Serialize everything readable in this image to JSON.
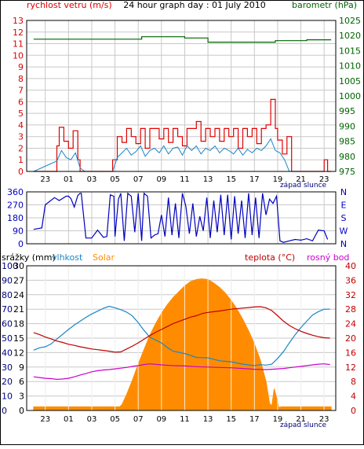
{
  "colors": {
    "wind": "#e00000",
    "gust": "#e00000",
    "baro": "#006400",
    "direction": "#0000c0",
    "rain": "#000080",
    "humidity": "#1a86c8",
    "solar": "#ff8c00",
    "temperature": "#c00000",
    "dewpoint": "#cc00cc",
    "sunset_label": "#000080",
    "frame": "#000000",
    "grid": "#c8c8c8"
  },
  "chart_data": [
    {
      "type": "line",
      "title": "24 hour graph day : 01 July 2010",
      "x_ticks": [
        "23",
        "01",
        "03",
        "05",
        "07",
        "09",
        "11",
        "13",
        "15",
        "17",
        "19",
        "21",
        "23"
      ],
      "annotation": "západ slunce",
      "left_axis": {
        "label": "rychlost vetru (m/s)",
        "range": [
          0,
          13
        ],
        "ticks": [
          "0",
          "1",
          "2",
          "3",
          "4",
          "5",
          "6",
          "7",
          "8",
          "9",
          "10",
          "11",
          "12",
          "13"
        ]
      },
      "right_axis": {
        "label": "barometr (hPa)",
        "range": [
          975,
          1025
        ],
        "ticks": [
          "975",
          "980",
          "985",
          "990",
          "995",
          "1000",
          "1005",
          "1010",
          "1015",
          "1020",
          "1025"
        ]
      },
      "series": [
        {
          "name": "rychlost vetru (m/s)",
          "axis": "left",
          "x": [
            -2.0,
            0.0,
            0.2,
            0.6,
            1.0,
            1.4,
            1.8,
            2.0,
            2.4,
            2.8,
            3.2,
            3.6,
            4.0,
            4.4,
            4.8,
            5.2,
            5.6,
            6.0,
            6.4,
            6.8,
            7.2,
            7.6,
            8.0,
            8.4,
            8.8,
            9.2,
            9.6,
            10.0,
            10.4,
            10.8,
            11.2,
            11.6,
            12.0,
            12.4,
            12.8,
            13.2,
            13.6,
            14.0,
            14.4,
            14.8,
            15.2,
            15.6,
            16.0,
            16.4,
            16.8,
            17.2,
            17.6,
            18.0,
            18.4,
            18.8,
            19.0,
            19.4,
            19.8,
            20.2,
            20.6,
            21.0,
            21.4,
            21.8,
            22.2,
            22.6,
            23.0,
            23.3,
            23.6
          ],
          "y": [
            0.0,
            2.2,
            3.8,
            2.6,
            2.0,
            3.5,
            1.0,
            0.0,
            0.0,
            0.0,
            0.0,
            0.0,
            0.0,
            0.0,
            1.0,
            3.0,
            2.5,
            3.7,
            3.0,
            2.4,
            3.7,
            2.0,
            3.7,
            3.7,
            2.8,
            3.7,
            2.5,
            3.7,
            3.0,
            2.2,
            3.7,
            3.7,
            4.3,
            2.6,
            3.7,
            3.0,
            3.7,
            2.6,
            3.7,
            3.0,
            3.7,
            2.0,
            3.7,
            3.0,
            3.7,
            2.4,
            3.7,
            4.0,
            6.2,
            3.7,
            2.7,
            1.5,
            3.0,
            0.0,
            0.0,
            0.0,
            0.0,
            0.0,
            0.0,
            0.0,
            1.0,
            0.0,
            0.0
          ]
        },
        {
          "name": "gust_lower_trace",
          "axis": "left",
          "x": [
            -2.0,
            0.0,
            0.4,
            0.8,
            1.2,
            1.6,
            2.0,
            2.4,
            2.8,
            3.2,
            3.6,
            4.0,
            4.4,
            4.8,
            5.2,
            5.6,
            6.0,
            6.4,
            6.8,
            7.2,
            7.6,
            8.0,
            8.4,
            8.8,
            9.2,
            9.6,
            10.0,
            10.4,
            10.8,
            11.2,
            11.6,
            12.0,
            12.4,
            12.8,
            13.2,
            13.6,
            14.0,
            14.4,
            14.8,
            15.2,
            15.6,
            16.0,
            16.4,
            16.8,
            17.2,
            17.6,
            18.0,
            18.4,
            18.8,
            19.2,
            19.6,
            20.0,
            20.4,
            21.0,
            22.0,
            23.6
          ],
          "y": [
            0.0,
            0.9,
            1.8,
            1.2,
            1.0,
            1.6,
            0.3,
            0.0,
            0.0,
            0.0,
            0.0,
            0.0,
            0.0,
            0.0,
            1.2,
            1.6,
            2.0,
            1.4,
            1.7,
            2.2,
            1.3,
            1.8,
            2.0,
            1.6,
            2.2,
            1.5,
            2.0,
            2.1,
            1.4,
            2.2,
            1.8,
            2.2,
            1.5,
            2.0,
            1.8,
            2.2,
            1.6,
            2.0,
            1.8,
            1.5,
            2.0,
            1.4,
            1.9,
            1.6,
            2.0,
            1.8,
            2.2,
            2.8,
            1.8,
            1.6,
            1.0,
            0.0,
            0.0,
            0.0,
            0.0,
            0.0
          ]
        },
        {
          "name": "barometr (hPa)",
          "axis": "right",
          "x": [
            -2.0,
            7.3,
            7.3,
            11.0,
            11.0,
            13.0,
            13.0,
            18.8,
            18.8,
            21.5,
            21.5,
            23.6
          ],
          "y": [
            1018.8,
            1018.8,
            1019.6,
            1019.6,
            1019.2,
            1019.2,
            1017.8,
            1017.8,
            1018.3,
            1018.3,
            1018.6,
            1018.6
          ]
        }
      ]
    },
    {
      "type": "line",
      "left_axis": {
        "range": [
          0,
          360
        ],
        "ticks": [
          "0",
          "90",
          "180",
          "270",
          "360"
        ]
      },
      "right_axis_labels": [
        "N",
        "W",
        "S",
        "E",
        "N"
      ],
      "series": [
        {
          "name": "smer vetru",
          "x": [
            -2.0,
            -1.3,
            -1.0,
            -0.2,
            0.2,
            0.8,
            1.0,
            1.2,
            1.5,
            1.8,
            2.0,
            2.1,
            2.5,
            3.0,
            3.5,
            4.0,
            4.3,
            4.6,
            4.9,
            5.0,
            5.3,
            5.5,
            5.8,
            6.1,
            6.4,
            6.7,
            7.0,
            7.3,
            7.5,
            7.8,
            8.1,
            8.4,
            8.7,
            9.0,
            9.3,
            9.6,
            9.9,
            10.2,
            10.5,
            10.8,
            11.1,
            11.4,
            11.7,
            12.0,
            12.3,
            12.6,
            12.9,
            13.2,
            13.5,
            13.8,
            14.1,
            14.4,
            14.7,
            15.0,
            15.3,
            15.6,
            15.9,
            16.2,
            16.5,
            16.8,
            17.1,
            17.4,
            17.7,
            18.0,
            18.3,
            18.6,
            18.9,
            19.2,
            19.5,
            20.0,
            20.5,
            21.0,
            21.5,
            22.0,
            22.5,
            23.0,
            23.3
          ],
          "y": [
            100.0,
            110.0,
            270.0,
            320.0,
            300.0,
            330.0,
            330.0,
            315.0,
            255.0,
            335.0,
            350.0,
            350.0,
            40.0,
            40.0,
            95.0,
            45.0,
            50.0,
            340.0,
            330.0,
            50.0,
            310.0,
            350.0,
            20.0,
            350.0,
            330.0,
            80.0,
            350.0,
            20.0,
            350.0,
            330.0,
            40.0,
            60.0,
            70.0,
            200.0,
            50.0,
            320.0,
            60.0,
            280.0,
            40.0,
            350.0,
            260.0,
            70.0,
            280.0,
            50.0,
            190.0,
            90.0,
            320.0,
            40.0,
            300.0,
            80.0,
            340.0,
            60.0,
            340.0,
            30.0,
            330.0,
            70.0,
            300.0,
            40.0,
            350.0,
            60.0,
            320.0,
            40.0,
            350.0,
            200.0,
            310.0,
            280.0,
            330.0,
            20.0,
            10.0,
            20.0,
            30.0,
            25.0,
            35.0,
            20.0,
            95.0,
            90.0,
            30.0
          ]
        }
      ]
    },
    {
      "type": "area",
      "x_ticks": [
        "23",
        "01",
        "03",
        "05",
        "07",
        "09",
        "11",
        "13",
        "15",
        "17",
        "19",
        "21",
        "23"
      ],
      "annotation": "západ slunce",
      "axes": {
        "rain": {
          "label": "srážky (mm)",
          "range": [
            0,
            100
          ],
          "ticks": [
            "0",
            "10",
            "20",
            "30",
            "40",
            "50",
            "60",
            "70",
            "80",
            "90",
            "100"
          ]
        },
        "humidity": {
          "label": "vlhkost",
          "range": [
            0,
            30
          ],
          "ticks": [
            "0",
            "3",
            "6",
            "9",
            "12",
            "15",
            "18",
            "21",
            "24",
            "27",
            "30"
          ]
        },
        "solar": {
          "label": "Solar",
          "range": [
            0,
            1000
          ],
          "ticks": []
        },
        "temperature": {
          "label": "teplota (°C)",
          "range": [
            0,
            40
          ],
          "ticks": [
            "0",
            "4",
            "8",
            "12",
            "16",
            "20",
            "24",
            "28",
            "32",
            "36",
            "40"
          ]
        },
        "dewpoint": {
          "label": "rosný bod",
          "ticks": []
        }
      },
      "series": [
        {
          "name": "Solar",
          "axis": "solar",
          "x": [
            -2.0,
            5.4,
            5.6,
            6.0,
            6.5,
            7.0,
            7.5,
            8.0,
            8.5,
            9.0,
            9.5,
            10.0,
            10.5,
            11.0,
            11.5,
            12.0,
            12.5,
            13.0,
            13.5,
            14.0,
            14.5,
            15.0,
            15.5,
            16.0,
            16.5,
            17.0,
            17.5,
            18.0,
            18.3,
            18.5,
            18.7,
            18.9,
            19.1,
            19.3,
            20.0,
            23.6
          ],
          "y": [
            25.0,
            25.0,
            40.0,
            110.0,
            210.0,
            320.0,
            420.0,
            520.0,
            600.0,
            670.0,
            730.0,
            780.0,
            820.0,
            860.0,
            890.0,
            905.0,
            910.0,
            905.0,
            880.0,
            850.0,
            810.0,
            760.0,
            700.0,
            630.0,
            550.0,
            460.0,
            350.0,
            200.0,
            50.0,
            30.0,
            150.0,
            90.0,
            20.0,
            25.0,
            25.0,
            25.0
          ]
        },
        {
          "name": "vlhkost",
          "axis": "humidity",
          "x": [
            -2.0,
            -1.5,
            -1.0,
            -0.5,
            0.0,
            0.5,
            1.0,
            1.5,
            2.0,
            2.5,
            3.0,
            3.5,
            4.0,
            4.5,
            5.0,
            5.5,
            6.0,
            6.5,
            7.0,
            7.5,
            8.0,
            8.5,
            9.0,
            9.5,
            10.0,
            11.0,
            12.0,
            13.0,
            14.0,
            15.0,
            16.0,
            17.0,
            17.5,
            18.0,
            18.5,
            19.0,
            19.5,
            20.0,
            20.5,
            21.0,
            21.5,
            22.0,
            22.5,
            23.0,
            23.5
          ],
          "y": [
            12.5,
            13.0,
            13.2,
            13.8,
            14.8,
            15.8,
            16.8,
            17.7,
            18.5,
            19.3,
            20.0,
            20.6,
            21.2,
            21.6,
            21.3,
            20.9,
            20.4,
            19.6,
            18.2,
            16.6,
            15.2,
            14.6,
            14.0,
            13.1,
            12.3,
            11.8,
            11.0,
            10.9,
            10.3,
            10.1,
            9.6,
            9.3,
            9.5,
            9.4,
            9.6,
            10.8,
            12.2,
            14.0,
            15.7,
            17.2,
            18.5,
            19.8,
            20.5,
            21.0,
            21.0
          ]
        },
        {
          "name": "teplota (°C)",
          "axis": "temperature",
          "x": [
            -2.0,
            -1.5,
            -1.0,
            -0.5,
            0.0,
            0.5,
            1.0,
            1.5,
            2.0,
            2.5,
            3.0,
            3.5,
            4.0,
            4.5,
            5.0,
            5.5,
            6.0,
            6.5,
            7.0,
            7.5,
            8.0,
            8.5,
            9.0,
            9.5,
            10.0,
            10.5,
            11.0,
            11.5,
            12.0,
            12.5,
            13.0,
            13.5,
            14.0,
            15.0,
            16.0,
            17.0,
            17.5,
            18.0,
            18.5,
            19.0,
            19.5,
            20.0,
            20.5,
            21.0,
            21.5,
            22.0,
            22.5,
            23.0,
            23.5
          ],
          "y": [
            21.5,
            21.0,
            20.3,
            19.8,
            19.2,
            18.8,
            18.3,
            18.0,
            17.6,
            17.3,
            17.0,
            16.8,
            16.6,
            16.4,
            16.1,
            16.2,
            17.0,
            17.8,
            18.7,
            19.7,
            20.7,
            21.6,
            22.4,
            23.2,
            24.0,
            24.6,
            25.2,
            25.8,
            26.2,
            26.8,
            27.1,
            27.3,
            27.5,
            28.0,
            28.3,
            28.6,
            28.7,
            28.4,
            27.6,
            26.2,
            24.7,
            23.5,
            22.6,
            21.9,
            21.3,
            20.8,
            20.4,
            20.1,
            20.0
          ]
        },
        {
          "name": "rosný bod",
          "axis": "temperature",
          "x": [
            -2.0,
            -1.5,
            -1.0,
            -0.5,
            0.0,
            0.5,
            1.0,
            1.5,
            2.0,
            2.5,
            3.0,
            3.5,
            4.0,
            4.5,
            5.0,
            5.5,
            6.0,
            6.5,
            7.0,
            7.5,
            8.0,
            9.0,
            10.0,
            11.0,
            12.0,
            13.0,
            14.0,
            15.0,
            16.0,
            17.0,
            18.0,
            18.5,
            19.0,
            19.5,
            20.0,
            20.5,
            21.0,
            21.5,
            22.0,
            22.5,
            23.0,
            23.5
          ],
          "y": [
            9.3,
            9.1,
            8.9,
            8.8,
            8.6,
            8.7,
            8.9,
            9.3,
            9.8,
            10.2,
            10.7,
            11.0,
            11.2,
            11.3,
            11.5,
            11.7,
            11.9,
            12.2,
            12.4,
            12.7,
            12.9,
            12.6,
            12.4,
            12.3,
            12.1,
            12.0,
            11.9,
            11.8,
            11.6,
            11.4,
            11.3,
            11.4,
            11.5,
            11.6,
            11.8,
            12.0,
            12.2,
            12.4,
            12.6,
            12.8,
            12.9,
            12.7
          ]
        }
      ]
    }
  ]
}
